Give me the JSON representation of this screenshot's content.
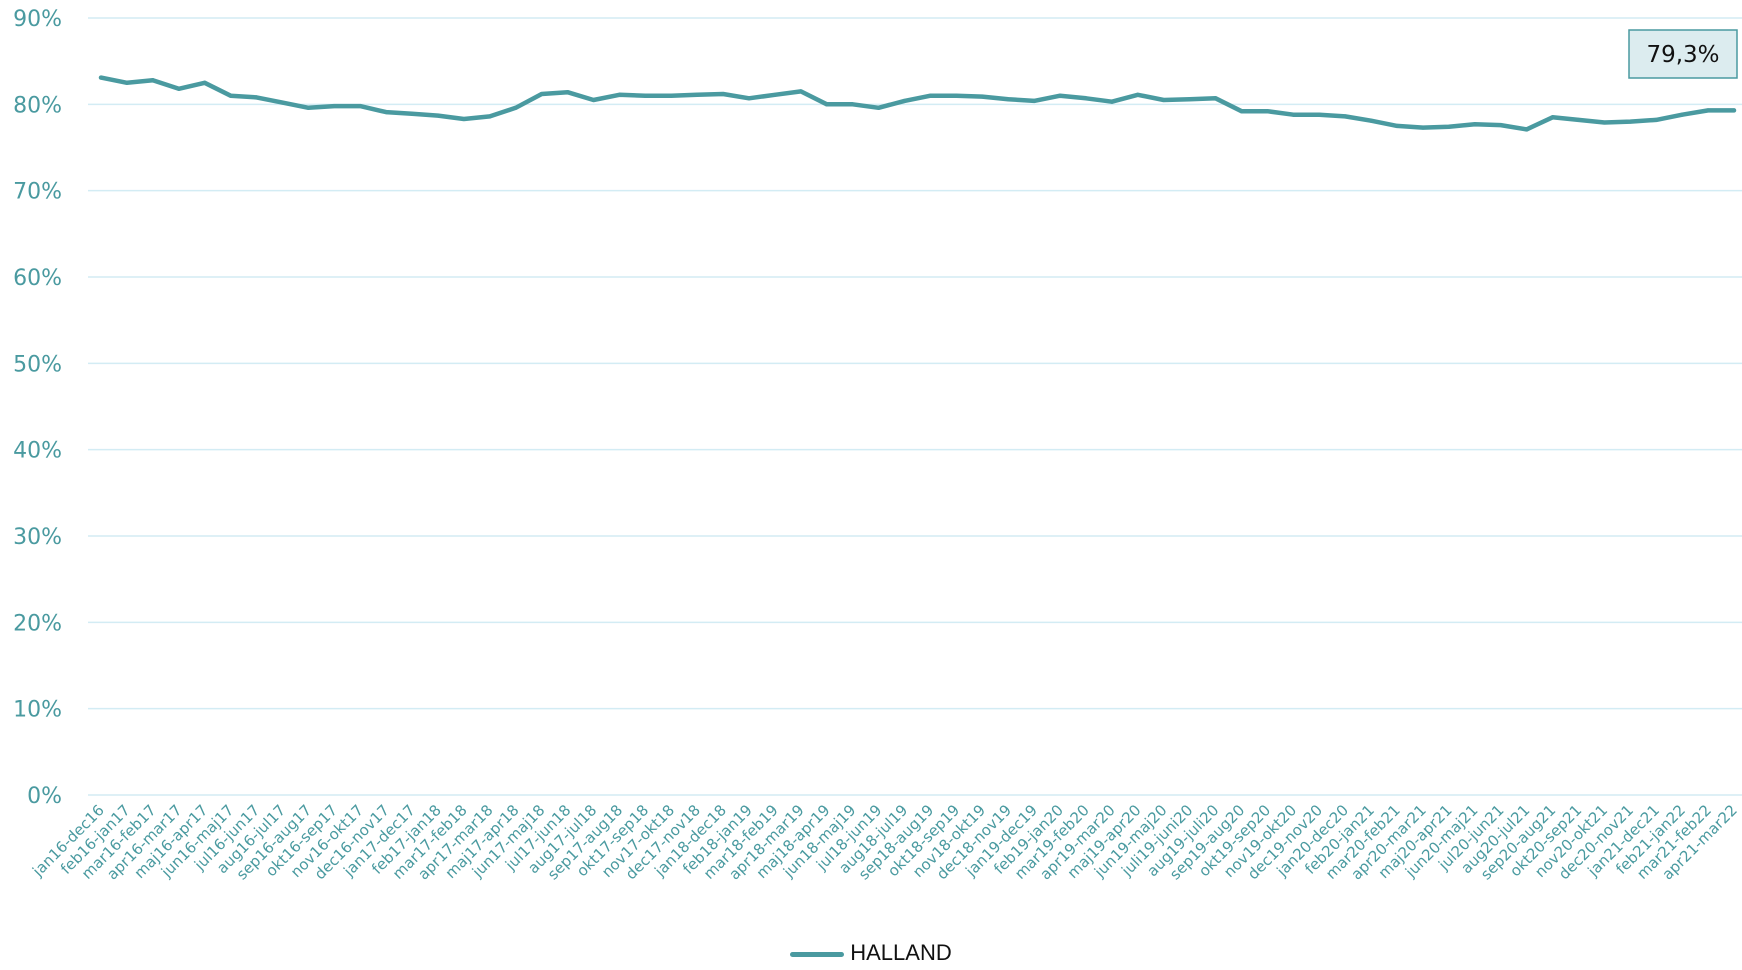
{
  "chart_data": {
    "type": "line",
    "title": "",
    "xlabel": "",
    "ylabel": "",
    "ylim": [
      0,
      90
    ],
    "yticks": [
      "0%",
      "10%",
      "20%",
      "30%",
      "40%",
      "50%",
      "60%",
      "70%",
      "80%",
      "90%"
    ],
    "grid": true,
    "legend_position": "bottom",
    "categories": [
      "jan16-dec16",
      "feb16-jan17",
      "mar16-feb17",
      "apr16-mar17",
      "maj16-apr17",
      "jun16-maj17",
      "jul16-jun17",
      "aug16-jul17",
      "sep16-aug17",
      "okt16-sep17",
      "nov16-okt17",
      "dec16-nov17",
      "jan17-dec17",
      "feb17-jan18",
      "mar17-feb18",
      "apr17-mar18",
      "maj17-apr18",
      "jun17-maj18",
      "jul17-jun18",
      "aug17-jul18",
      "sep17-aug18",
      "okt17-sep18",
      "nov17-okt18",
      "dec17-nov18",
      "jan18-dec18",
      "feb18-jan19",
      "mar18-feb19",
      "apr18-mar19",
      "maj18-apr19",
      "jun18-maj19",
      "jul18-jun19",
      "aug18-jul19",
      "sep18-aug19",
      "okt18-sep19",
      "nov18-okt19",
      "dec18-nov19",
      "jan19-dec19",
      "feb19-jan20",
      "mar19-feb20",
      "apr19-mar20",
      "maj19-apr20",
      "jun19-maj20",
      "juli19-juni20",
      "aug19-juli20",
      "sep19-aug20",
      "okt19-sep20",
      "nov19-okt20",
      "dec19-nov20",
      "jan20-dec20",
      "feb20-jan21",
      "mar20-feb21",
      "apr20-mar21",
      "maj20-apr21",
      "jun20-maj21",
      "jul20-jun21",
      "aug20-jul21",
      "sep20-aug21",
      "okt20-sep21",
      "nov20-okt21",
      "dec20-nov21",
      "jan21-dec21",
      "feb21-jan22",
      "mar21-feb22",
      "apr21-mar22"
    ],
    "series": [
      {
        "name": "HALLAND",
        "color": "#4a9aa0",
        "values": [
          83.1,
          82.5,
          82.8,
          81.8,
          82.5,
          81.0,
          80.8,
          80.2,
          79.6,
          79.8,
          79.8,
          79.1,
          78.9,
          78.7,
          78.3,
          78.6,
          79.6,
          81.2,
          81.4,
          80.5,
          81.1,
          81.0,
          81.0,
          81.1,
          81.2,
          80.7,
          81.1,
          81.5,
          80.0,
          80.0,
          79.6,
          80.4,
          81.0,
          81.0,
          80.9,
          80.6,
          80.4,
          81.0,
          80.7,
          80.3,
          81.1,
          80.5,
          80.6,
          80.7,
          79.2,
          79.2,
          78.8,
          78.8,
          78.6,
          78.1,
          77.5,
          77.3,
          77.4,
          77.7,
          77.6,
          77.1,
          78.5,
          78.2,
          77.9,
          78.0,
          78.2,
          78.8,
          79.3,
          79.3
        ]
      }
    ],
    "annotations": [
      {
        "text": "79,3%",
        "series": "HALLAND",
        "category": "apr21-mar22"
      }
    ]
  }
}
